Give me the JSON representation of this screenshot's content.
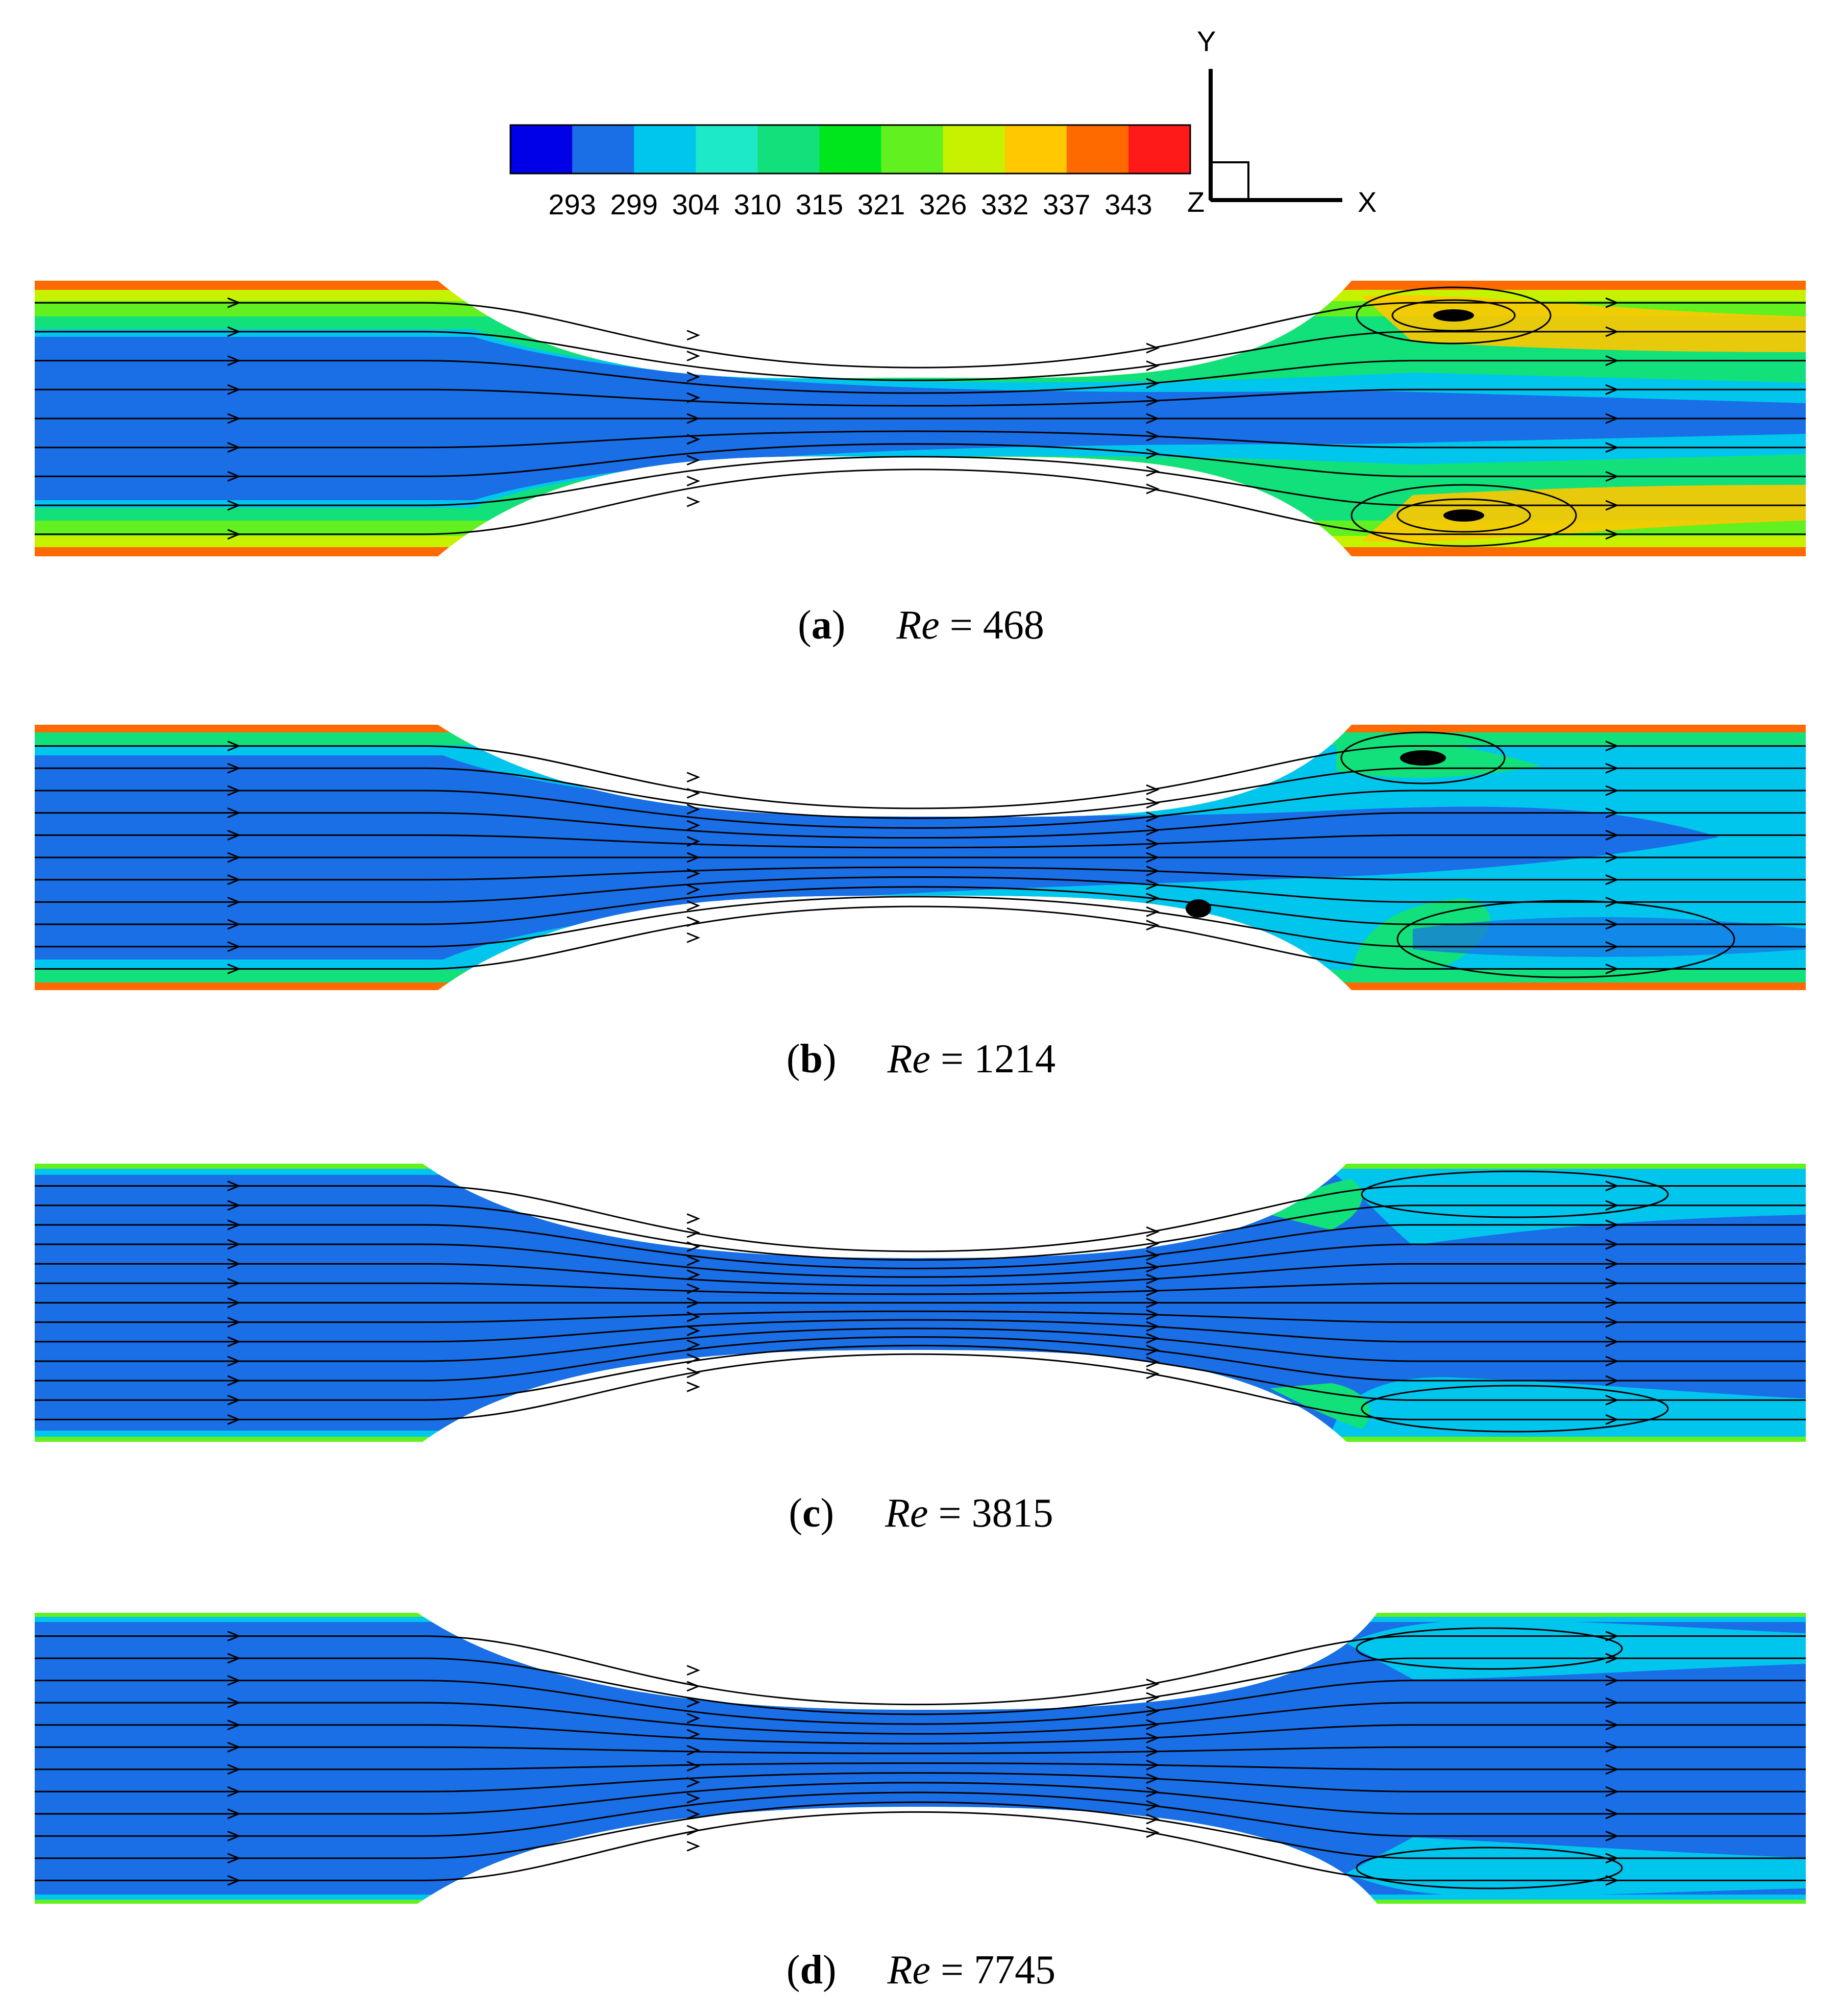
{
  "legend": {
    "ticks": [
      "293",
      "299",
      "304",
      "310",
      "315",
      "321",
      "326",
      "332",
      "337",
      "343"
    ],
    "colors": [
      "#0000e8",
      "#1a6ee6",
      "#00c6ee",
      "#1de8c8",
      "#12e07a",
      "#00e61c",
      "#62f020",
      "#c6f200",
      "#ffc800",
      "#ff6a00",
      "#ff1a1a"
    ]
  },
  "axes": {
    "y": "Y",
    "x": "X",
    "z": "Z"
  },
  "colors": {
    "cold": "#1a6ee6",
    "cool": "#00c6ee",
    "teal": "#1de8c8",
    "green": "#12e07a",
    "yellow": "#c6f200",
    "orange": "#ff6a00",
    "streamline": "#000000"
  },
  "panels": [
    {
      "label": "a",
      "re_symbol": "Re",
      "eq": "=",
      "re_value": "468"
    },
    {
      "label": "b",
      "re_symbol": "Re",
      "eq": "=",
      "re_value": "1214"
    },
    {
      "label": "c",
      "re_symbol": "Re",
      "eq": "=",
      "re_value": "3815"
    },
    {
      "label": "d",
      "re_symbol": "Re",
      "eq": "=",
      "re_value": "7745"
    }
  ]
}
